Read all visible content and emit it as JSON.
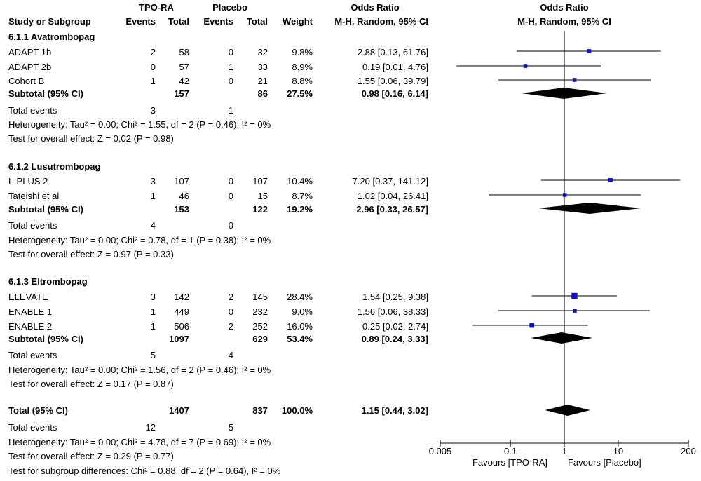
{
  "header": {
    "group1": "TPO-RA",
    "group2": "Placebo",
    "study_col": "Study or Subgroup",
    "events": "Events",
    "total": "Total",
    "weight": "Weight",
    "or_title": "Odds Ratio",
    "or_method": "M-H, Random, 95% CI",
    "plot_title": "Odds Ratio",
    "plot_method": "M-H, Random, 95% CI"
  },
  "subgroups": [
    {
      "title": "6.1.1 Avatrombopag",
      "studies": [
        {
          "name": "ADAPT 1b",
          "e1": "2",
          "n1": "58",
          "e2": "0",
          "n2": "32",
          "weight": "9.8%",
          "ci_text": "2.88 [0.13, 61.76]"
        },
        {
          "name": "ADAPT 2b",
          "e1": "0",
          "n1": "57",
          "e2": "1",
          "n2": "33",
          "weight": "8.9%",
          "ci_text": "0.19 [0.01, 4.76]"
        },
        {
          "name": "Cohort B",
          "e1": "1",
          "n1": "42",
          "e2": "0",
          "n2": "21",
          "weight": "8.8%",
          "ci_text": "1.55 [0.06, 39.79]"
        }
      ],
      "subtotal": {
        "label": "Subtotal (95% CI)",
        "n1": "157",
        "n2": "86",
        "weight": "27.5%",
        "ci_text": "0.98 [0.16, 6.14]"
      },
      "events": {
        "label": "Total events",
        "e1": "3",
        "e2": "1"
      },
      "heterogeneity": "Heterogeneity: Tau² = 0.00; Chi² = 1.55, df = 2 (P = 0.46); I² = 0%",
      "overall": "Test for overall effect: Z = 0.02 (P = 0.98)"
    },
    {
      "title": "6.1.2 Lusutrombopag",
      "studies": [
        {
          "name": "L-PLUS 2",
          "e1": "3",
          "n1": "107",
          "e2": "0",
          "n2": "107",
          "weight": "10.4%",
          "ci_text": "7.20 [0.37, 141.12]"
        },
        {
          "name": "Tateishi et al",
          "e1": "1",
          "n1": "46",
          "e2": "0",
          "n2": "15",
          "weight": "8.7%",
          "ci_text": "1.02 [0.04, 26.41]"
        }
      ],
      "subtotal": {
        "label": "Subtotal (95% CI)",
        "n1": "153",
        "n2": "122",
        "weight": "19.2%",
        "ci_text": "2.96 [0.33, 26.57]"
      },
      "events": {
        "label": "Total events",
        "e1": "4",
        "e2": "0"
      },
      "heterogeneity": "Heterogeneity: Tau² = 0.00; Chi² = 0.78, df = 1 (P = 0.38); I² = 0%",
      "overall": "Test for overall effect: Z = 0.97 (P = 0.33)"
    },
    {
      "title": "6.1.3 Eltrombopag",
      "studies": [
        {
          "name": "ELEVATE",
          "e1": "3",
          "n1": "142",
          "e2": "2",
          "n2": "145",
          "weight": "28.4%",
          "ci_text": "1.54 [0.25, 9.38]"
        },
        {
          "name": "ENABLE 1",
          "e1": "1",
          "n1": "449",
          "e2": "0",
          "n2": "232",
          "weight": "9.0%",
          "ci_text": "1.56 [0.06, 38.33]"
        },
        {
          "name": "ENABLE 2",
          "e1": "1",
          "n1": "506",
          "e2": "2",
          "n2": "252",
          "weight": "16.0%",
          "ci_text": "0.25 [0.02, 2.74]"
        }
      ],
      "subtotal": {
        "label": "Subtotal (95% CI)",
        "n1": "1097",
        "n2": "629",
        "weight": "53.4%",
        "ci_text": "0.89 [0.24, 3.33]"
      },
      "events": {
        "label": "Total events",
        "e1": "5",
        "e2": "4"
      },
      "heterogeneity": "Heterogeneity: Tau² = 0.00; Chi² = 1.56, df = 2 (P = 0.46); I² = 0%",
      "overall": "Test for overall effect: Z = 0.17 (P = 0.87)"
    }
  ],
  "total": {
    "label": "Total (95% CI)",
    "n1": "1407",
    "n2": "837",
    "weight": "100.0%",
    "ci_text": "1.15 [0.44, 3.02]",
    "events": {
      "label": "Total events",
      "e1": "12",
      "e2": "5"
    },
    "heterogeneity": "Heterogeneity: Tau² = 0.00; Chi² = 4.78, df = 7 (P = 0.69); I² = 0%",
    "overall": "Test for overall effect: Z = 0.29 (P = 0.77)",
    "subgroup_diff": "Test for subgroup differences: Chi² = 0.88, df = 2 (P = 0.64), I² = 0%"
  },
  "axis": {
    "favours_left": "Favours [TPO-RA]",
    "favours_right": "Favours [Placebo]"
  },
  "colors": {
    "marker": "#1010c0",
    "diamond": "#000000",
    "line": "#000000"
  },
  "chart_data": {
    "type": "scatter",
    "title": "Odds Ratio",
    "subtitle": "M-H, Random, 95% CI",
    "x_scale": "log",
    "xlim": [
      0.005,
      200
    ],
    "ticks": [
      0.005,
      0.1,
      1,
      10,
      200
    ],
    "tick_labels": [
      "0.005",
      "0.1",
      "1",
      "10",
      "200"
    ],
    "null_line": 1,
    "studies": [
      {
        "name": "ADAPT 1b",
        "or": 2.88,
        "lo": 0.13,
        "hi": 61.76,
        "weight": 9.8
      },
      {
        "name": "ADAPT 2b",
        "or": 0.19,
        "lo": 0.01,
        "hi": 4.76,
        "weight": 8.9
      },
      {
        "name": "Cohort B",
        "or": 1.55,
        "lo": 0.06,
        "hi": 39.79,
        "weight": 8.8
      },
      {
        "name": "L-PLUS 2",
        "or": 7.2,
        "lo": 0.37,
        "hi": 141.12,
        "weight": 10.4
      },
      {
        "name": "Tateishi et al",
        "or": 1.02,
        "lo": 0.04,
        "hi": 26.41,
        "weight": 8.7
      },
      {
        "name": "ELEVATE",
        "or": 1.54,
        "lo": 0.25,
        "hi": 9.38,
        "weight": 28.4
      },
      {
        "name": "ENABLE 1",
        "or": 1.56,
        "lo": 0.06,
        "hi": 38.33,
        "weight": 9.0
      },
      {
        "name": "ENABLE 2",
        "or": 0.25,
        "lo": 0.02,
        "hi": 2.74,
        "weight": 16.0
      }
    ],
    "subtotals": [
      {
        "name": "6.1.1 Avatrombopag",
        "or": 0.98,
        "lo": 0.16,
        "hi": 6.14
      },
      {
        "name": "6.1.2 Lusutrombopag",
        "or": 2.96,
        "lo": 0.33,
        "hi": 26.57
      },
      {
        "name": "6.1.3 Eltrombopag",
        "or": 0.89,
        "lo": 0.24,
        "hi": 3.33
      }
    ],
    "overall": {
      "name": "Total",
      "or": 1.15,
      "lo": 0.44,
      "hi": 3.02
    }
  }
}
